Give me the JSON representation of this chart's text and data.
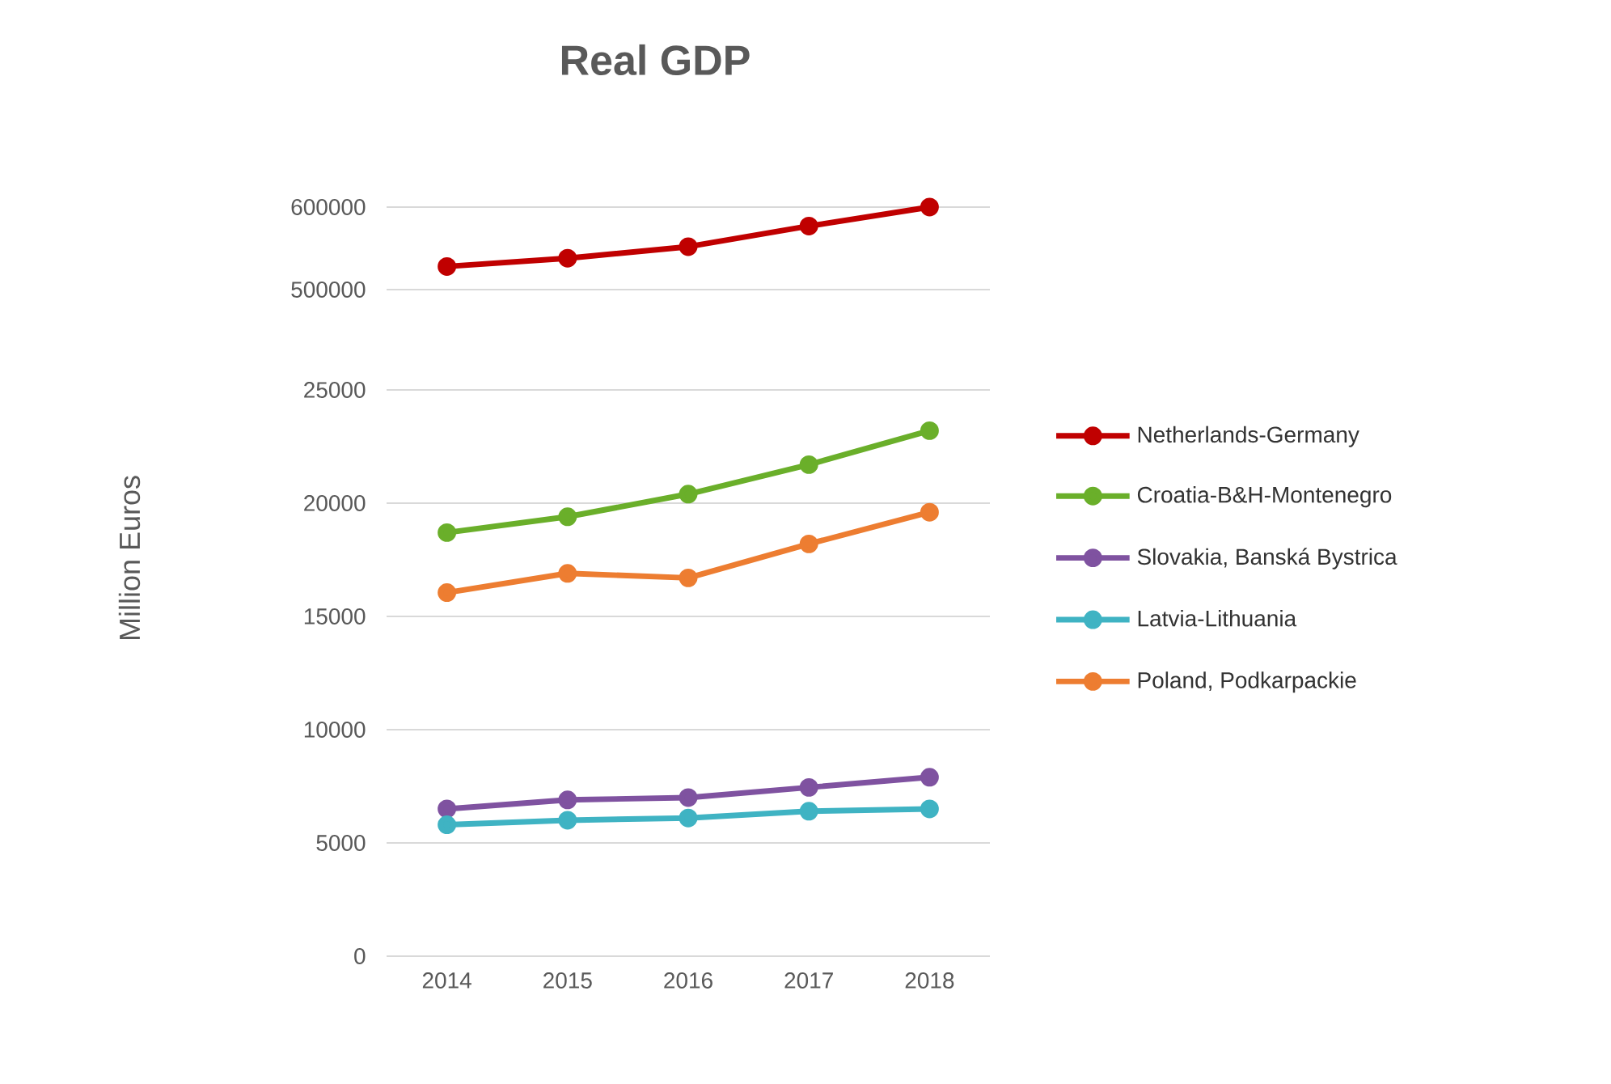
{
  "chart_data": [
    {
      "type": "line",
      "title": "Real GDP",
      "categories": [
        "2014",
        "2015",
        "2016",
        "2017",
        "2018"
      ],
      "ylim": [
        500000,
        600000
      ],
      "yticks": [
        500000,
        600000
      ],
      "tick_labels": "y",
      "legend": "right",
      "marker": "circle",
      "line_style": "solid",
      "series": [
        {
          "name": "Netherlands-Germany",
          "color": "#c00000",
          "values": [
            528000,
            538000,
            552000,
            577000,
            600000
          ]
        }
      ]
    },
    {
      "type": "line",
      "ylabel": "Million Euros",
      "categories": [
        "2014",
        "2015",
        "2016",
        "2017",
        "2018"
      ],
      "ylim": [
        0,
        25000
      ],
      "yticks": [
        0,
        5000,
        10000,
        15000,
        20000,
        25000
      ],
      "grid": "y",
      "legend": "right",
      "marker": "circle",
      "line_style": "solid",
      "series": [
        {
          "name": "Croatia-B&H-Montenegro",
          "color": "#6aaf2a",
          "values": [
            18700,
            19400,
            20400,
            21700,
            23200
          ]
        },
        {
          "name": "Slovakia, Banská Bystrica",
          "color": "#7f52a0",
          "values": [
            6500,
            6900,
            7000,
            7450,
            7900
          ]
        },
        {
          "name": "Latvia-Lithuania",
          "color": "#3fb3c3",
          "values": [
            5800,
            6000,
            6100,
            6400,
            6500
          ]
        },
        {
          "name": "Poland, Podkarpackie",
          "color": "#ed7d31",
          "values": [
            16050,
            16900,
            16700,
            18200,
            19600
          ]
        }
      ]
    }
  ]
}
